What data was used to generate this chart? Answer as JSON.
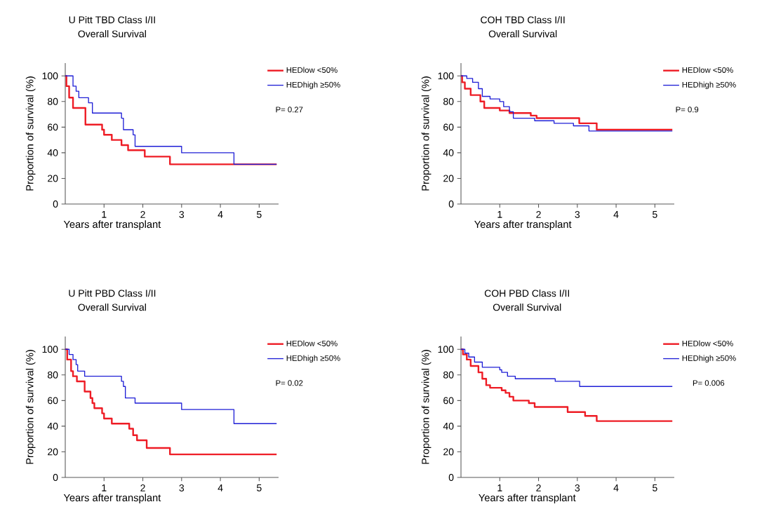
{
  "chart_data": [
    {
      "type": "step",
      "title": "U Pitt TBD Class I/II",
      "subtitle": "Overall Survival",
      "xlabel": "Years after transplant",
      "ylabel": "Proportion of survival (%)",
      "xlim": [
        0,
        5.5
      ],
      "ylim": [
        0,
        110
      ],
      "xticks": [
        1,
        2,
        3,
        4,
        5
      ],
      "yticks": [
        0,
        20,
        40,
        60,
        80,
        100
      ],
      "legend": "top right",
      "annotations": [
        "P= 0.27"
      ],
      "series": [
        {
          "name": "HEDlow <50%",
          "color": "#ee1c25",
          "x": [
            0,
            0.03,
            0.1,
            0.2,
            0.52,
            0.95,
            1.0,
            1.2,
            1.45,
            1.62,
            2.05,
            2.7,
            5.45
          ],
          "values": [
            100,
            92,
            83,
            75,
            62,
            58,
            54,
            50,
            46,
            42,
            37,
            31,
            31
          ]
        },
        {
          "name": "HEDhigh ≥50%",
          "color": "#1f1fd6",
          "x": [
            0,
            0.2,
            0.28,
            0.35,
            0.6,
            0.7,
            1.45,
            1.5,
            1.75,
            1.8,
            3.0,
            4.35,
            5.45
          ],
          "values": [
            100,
            92,
            88,
            83,
            79,
            71,
            67,
            58,
            54,
            45,
            40,
            31,
            31
          ]
        }
      ]
    },
    {
      "type": "step",
      "title": "COH TBD Class I/II",
      "subtitle": "Overall Survival",
      "xlabel": "Years after transplant",
      "ylabel": "Proportion of survival (%)",
      "xlim": [
        0,
        5.5
      ],
      "ylim": [
        0,
        110
      ],
      "xticks": [
        1,
        2,
        3,
        4,
        5
      ],
      "yticks": [
        0,
        20,
        40,
        60,
        80,
        100
      ],
      "legend": "top right",
      "annotations": [
        "P= 0.9"
      ],
      "series": [
        {
          "name": "HEDlow <50%",
          "color": "#ee1c25",
          "x": [
            0,
            0.03,
            0.1,
            0.25,
            0.5,
            0.6,
            1.0,
            1.25,
            1.8,
            1.95,
            3.05,
            3.5,
            5.45
          ],
          "values": [
            100,
            95,
            90,
            85,
            80,
            75,
            73,
            71,
            69,
            67,
            63,
            58,
            58
          ]
        },
        {
          "name": "HEDhigh ≥50%",
          "color": "#1f1fd6",
          "x": [
            0,
            0.15,
            0.3,
            0.45,
            0.55,
            0.75,
            1.0,
            1.1,
            1.25,
            1.35,
            1.9,
            2.4,
            2.9,
            3.3,
            5.45
          ],
          "values": [
            100,
            98,
            95,
            90,
            84,
            82,
            80,
            76,
            72,
            67,
            65,
            63,
            61,
            57,
            57
          ]
        }
      ]
    },
    {
      "type": "step",
      "title": "U Pitt PBD Class I/II",
      "subtitle": "Overall Survival",
      "xlabel": "Years after transplant",
      "ylabel": "Proportion of survival (%)",
      "xlim": [
        0,
        5.5
      ],
      "ylim": [
        0,
        110
      ],
      "xticks": [
        1,
        2,
        3,
        4,
        5
      ],
      "yticks": [
        0,
        20,
        40,
        60,
        80,
        100
      ],
      "legend": "top right",
      "annotations": [
        "P= 0.02"
      ],
      "series": [
        {
          "name": "HEDlow <50%",
          "color": "#ee1c25",
          "x": [
            0,
            0.05,
            0.15,
            0.2,
            0.3,
            0.5,
            0.65,
            0.7,
            0.75,
            0.95,
            1.0,
            1.2,
            1.65,
            1.75,
            1.85,
            2.1,
            2.7,
            5.45
          ],
          "values": [
            100,
            92,
            83,
            79,
            75,
            67,
            62,
            58,
            54,
            50,
            46,
            42,
            38,
            33,
            29,
            23,
            18,
            18
          ]
        },
        {
          "name": "HEDhigh ≥50%",
          "color": "#1f1fd6",
          "x": [
            0,
            0.1,
            0.2,
            0.28,
            0.32,
            0.5,
            1.45,
            1.5,
            1.55,
            1.8,
            3.0,
            4.35,
            5.45
          ],
          "values": [
            100,
            96,
            92,
            88,
            83,
            79,
            75,
            71,
            62,
            58,
            53,
            42,
            42
          ]
        }
      ]
    },
    {
      "type": "step",
      "title": "COH PBD Class I/II",
      "subtitle": "Overall Survival",
      "xlabel": "Years after transplant",
      "ylabel": "Proportion of survival (%)",
      "xlim": [
        0,
        5.5
      ],
      "ylim": [
        0,
        110
      ],
      "xticks": [
        1,
        2,
        3,
        4,
        5
      ],
      "yticks": [
        0,
        20,
        40,
        60,
        80,
        100
      ],
      "legend": "top right",
      "annotations": [
        "P= 0.006"
      ],
      "series": [
        {
          "name": "HEDlow <50%",
          "color": "#ee1c25",
          "x": [
            0,
            0.05,
            0.15,
            0.25,
            0.45,
            0.55,
            0.65,
            0.75,
            1.05,
            1.15,
            1.25,
            1.35,
            1.75,
            1.9,
            2.75,
            3.2,
            3.5,
            5.45
          ],
          "values": [
            100,
            96,
            92,
            87,
            82,
            77,
            72,
            70,
            68,
            66,
            63,
            60,
            58,
            55,
            51,
            48,
            44,
            44
          ]
        },
        {
          "name": "HEDhigh ≥50%",
          "color": "#1f1fd6",
          "x": [
            0,
            0.1,
            0.2,
            0.35,
            0.55,
            1.0,
            1.05,
            1.2,
            1.4,
            2.43,
            3.06,
            5.45
          ],
          "values": [
            100,
            97,
            94,
            90,
            86,
            84,
            82,
            79,
            77,
            75,
            71,
            71
          ]
        }
      ]
    }
  ]
}
